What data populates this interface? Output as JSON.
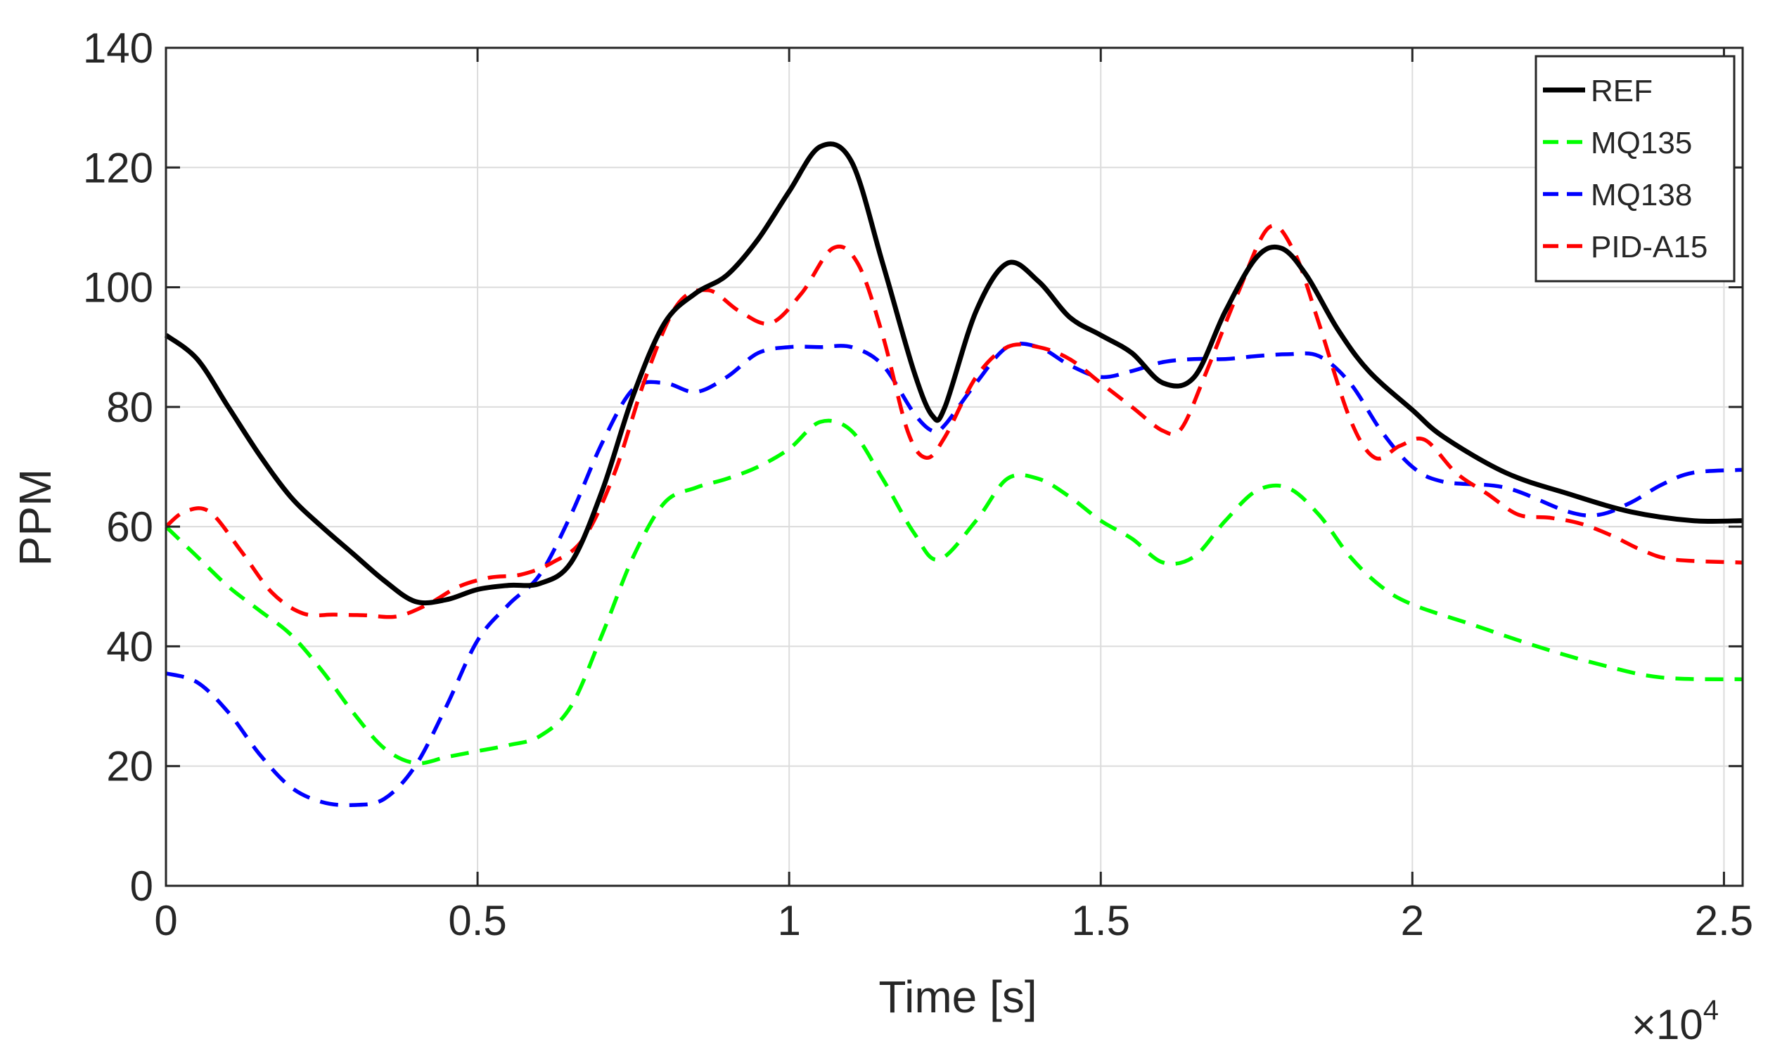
{
  "chart_data": {
    "type": "line",
    "xlabel": "Time [s]",
    "ylabel": "PPM",
    "x_exponent_label": "×10",
    "x_exponent_power": "4",
    "xlim": [
      0,
      25300
    ],
    "ylim": [
      0,
      140
    ],
    "xticks": [
      0,
      5000,
      10000,
      15000,
      20000,
      25000
    ],
    "xtick_labels": [
      "0",
      "0.5",
      "1",
      "1.5",
      "2",
      "2.5"
    ],
    "yticks": [
      0,
      20,
      40,
      60,
      80,
      100,
      120,
      140
    ],
    "ytick_labels": [
      "0",
      "20",
      "40",
      "60",
      "80",
      "100",
      "120",
      "140"
    ],
    "grid": true,
    "legend_position": "top-right",
    "series": [
      {
        "name": "REF",
        "color": "#000000",
        "style": "solid",
        "points": [
          [
            0,
            92
          ],
          [
            500,
            88
          ],
          [
            1000,
            80
          ],
          [
            1500,
            72
          ],
          [
            2000,
            65
          ],
          [
            2500,
            60
          ],
          [
            3000,
            55.5
          ],
          [
            3500,
            51
          ],
          [
            4000,
            47.5
          ],
          [
            4500,
            47.8
          ],
          [
            5000,
            49.5
          ],
          [
            5500,
            50.2
          ],
          [
            6000,
            50.5
          ],
          [
            6500,
            54
          ],
          [
            7000,
            66
          ],
          [
            7500,
            82
          ],
          [
            8000,
            94
          ],
          [
            8500,
            99
          ],
          [
            9000,
            102
          ],
          [
            9500,
            108
          ],
          [
            10000,
            116
          ],
          [
            10500,
            123.5
          ],
          [
            11000,
            121
          ],
          [
            11500,
            104
          ],
          [
            12000,
            86
          ],
          [
            12300,
            78.5
          ],
          [
            12500,
            80
          ],
          [
            13000,
            96
          ],
          [
            13500,
            104
          ],
          [
            14000,
            101
          ],
          [
            14500,
            95
          ],
          [
            15000,
            92
          ],
          [
            15500,
            89
          ],
          [
            16000,
            84
          ],
          [
            16500,
            85
          ],
          [
            17000,
            96
          ],
          [
            17500,
            105
          ],
          [
            17900,
            106.5
          ],
          [
            18300,
            102
          ],
          [
            18800,
            93
          ],
          [
            19300,
            86
          ],
          [
            20000,
            79.5
          ],
          [
            20500,
            75
          ],
          [
            21500,
            69
          ],
          [
            22500,
            65.5
          ],
          [
            23500,
            62.5
          ],
          [
            24500,
            61
          ],
          [
            25300,
            61
          ]
        ]
      },
      {
        "name": "MQ135",
        "color": "#00ff00",
        "style": "dashed",
        "points": [
          [
            0,
            60
          ],
          [
            500,
            55
          ],
          [
            1000,
            50
          ],
          [
            1500,
            46
          ],
          [
            2000,
            42
          ],
          [
            2500,
            36
          ],
          [
            3000,
            29
          ],
          [
            3500,
            23
          ],
          [
            4000,
            20.5
          ],
          [
            4500,
            21.5
          ],
          [
            5000,
            22.5
          ],
          [
            5500,
            23.5
          ],
          [
            6000,
            25
          ],
          [
            6500,
            30
          ],
          [
            7000,
            42
          ],
          [
            7500,
            55
          ],
          [
            8000,
            64
          ],
          [
            8500,
            66.5
          ],
          [
            9000,
            68
          ],
          [
            9500,
            70
          ],
          [
            10000,
            73
          ],
          [
            10500,
            77.5
          ],
          [
            11000,
            76
          ],
          [
            11500,
            68
          ],
          [
            12000,
            59
          ],
          [
            12400,
            54.5
          ],
          [
            13000,
            61
          ],
          [
            13500,
            68
          ],
          [
            14000,
            68
          ],
          [
            14500,
            65
          ],
          [
            15000,
            61
          ],
          [
            15500,
            58
          ],
          [
            16000,
            54
          ],
          [
            16500,
            55
          ],
          [
            17000,
            61
          ],
          [
            17500,
            66
          ],
          [
            18000,
            66.5
          ],
          [
            18500,
            62
          ],
          [
            19000,
            55
          ],
          [
            19500,
            50
          ],
          [
            20000,
            47
          ],
          [
            21000,
            43.5
          ],
          [
            22000,
            40
          ],
          [
            23000,
            37
          ],
          [
            24000,
            34.8
          ],
          [
            25300,
            34.5
          ]
        ]
      },
      {
        "name": "MQ138",
        "color": "#0000ff",
        "style": "dashed",
        "points": [
          [
            0,
            35.5
          ],
          [
            500,
            34
          ],
          [
            1000,
            29
          ],
          [
            1500,
            22
          ],
          [
            2000,
            16.5
          ],
          [
            2500,
            14
          ],
          [
            3000,
            13.5
          ],
          [
            3500,
            14.5
          ],
          [
            4000,
            20
          ],
          [
            4500,
            30
          ],
          [
            5000,
            41
          ],
          [
            5500,
            47
          ],
          [
            6000,
            52
          ],
          [
            6500,
            62
          ],
          [
            7000,
            74
          ],
          [
            7500,
            83
          ],
          [
            8000,
            84
          ],
          [
            8500,
            82.5
          ],
          [
            9000,
            85
          ],
          [
            9500,
            89
          ],
          [
            10000,
            90
          ],
          [
            10500,
            90
          ],
          [
            11000,
            90
          ],
          [
            11500,
            87
          ],
          [
            12000,
            79
          ],
          [
            12300,
            76
          ],
          [
            12500,
            77
          ],
          [
            13000,
            84
          ],
          [
            13500,
            90
          ],
          [
            14000,
            90
          ],
          [
            14500,
            87
          ],
          [
            15000,
            85
          ],
          [
            15500,
            86
          ],
          [
            16000,
            87.5
          ],
          [
            16500,
            88
          ],
          [
            17000,
            88
          ],
          [
            17500,
            88.5
          ],
          [
            18000,
            88.8
          ],
          [
            18500,
            88.5
          ],
          [
            19000,
            84
          ],
          [
            19500,
            76
          ],
          [
            20000,
            70
          ],
          [
            20500,
            67.5
          ],
          [
            21500,
            66.5
          ],
          [
            22500,
            62.5
          ],
          [
            23000,
            62
          ],
          [
            23500,
            64
          ],
          [
            24000,
            67
          ],
          [
            24500,
            69
          ],
          [
            25300,
            69.5
          ]
        ]
      },
      {
        "name": "PID-A15",
        "color": "#ff0000",
        "style": "dashed",
        "points": [
          [
            0,
            60
          ],
          [
            300,
            62.5
          ],
          [
            700,
            62.5
          ],
          [
            1200,
            56
          ],
          [
            1700,
            49
          ],
          [
            2200,
            45.5
          ],
          [
            2700,
            45.3
          ],
          [
            3200,
            45.2
          ],
          [
            3700,
            45
          ],
          [
            4200,
            47
          ],
          [
            4700,
            50
          ],
          [
            5200,
            51.5
          ],
          [
            5700,
            52
          ],
          [
            6200,
            54
          ],
          [
            6700,
            58
          ],
          [
            7200,
            69
          ],
          [
            7700,
            85
          ],
          [
            8200,
            97
          ],
          [
            8700,
            99.5
          ],
          [
            9200,
            96
          ],
          [
            9700,
            94
          ],
          [
            10200,
            99
          ],
          [
            10700,
            106.5
          ],
          [
            11100,
            104
          ],
          [
            11500,
            92
          ],
          [
            11900,
            76
          ],
          [
            12200,
            71.5
          ],
          [
            12500,
            75
          ],
          [
            13000,
            85
          ],
          [
            13500,
            90
          ],
          [
            14000,
            90
          ],
          [
            14500,
            88
          ],
          [
            15000,
            84
          ],
          [
            15500,
            80
          ],
          [
            16000,
            76
          ],
          [
            16300,
            76.5
          ],
          [
            16700,
            86
          ],
          [
            17200,
            99
          ],
          [
            17700,
            110
          ],
          [
            18100,
            106
          ],
          [
            18500,
            94
          ],
          [
            19000,
            78
          ],
          [
            19400,
            71.5
          ],
          [
            19800,
            73.5
          ],
          [
            20200,
            74.5
          ],
          [
            20700,
            69
          ],
          [
            21200,
            65.5
          ],
          [
            21700,
            62
          ],
          [
            22200,
            61.5
          ],
          [
            22700,
            60.5
          ],
          [
            23200,
            58.5
          ],
          [
            23700,
            56
          ],
          [
            24200,
            54.5
          ],
          [
            25300,
            54
          ]
        ]
      }
    ]
  }
}
